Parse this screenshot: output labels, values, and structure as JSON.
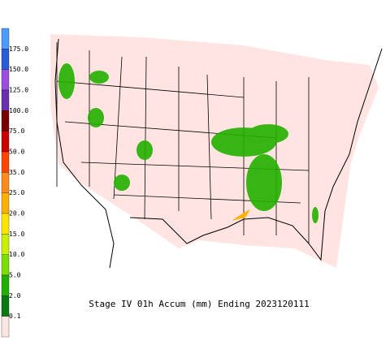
{
  "title": "Stage IV 01h Accum (mm) Ending 2023120111",
  "legend": {
    "labels": [
      "175.0",
      "150.0",
      "125.0",
      "100.0",
      "75.0",
      "50.0",
      "35.0",
      "25.0",
      "20.0",
      "15.0",
      "10.0",
      "5.0",
      "2.0",
      "0.1"
    ],
    "colors": [
      "#4c9cff",
      "#2a5cd9",
      "#9b4de0",
      "#6a2fb0",
      "#7a0000",
      "#cc0000",
      "#ff4400",
      "#ff8c1a",
      "#ffb000",
      "#ffe400",
      "#c8f000",
      "#7be000",
      "#22b000",
      "#0a7a10",
      "#ffe4e1"
    ]
  }
}
